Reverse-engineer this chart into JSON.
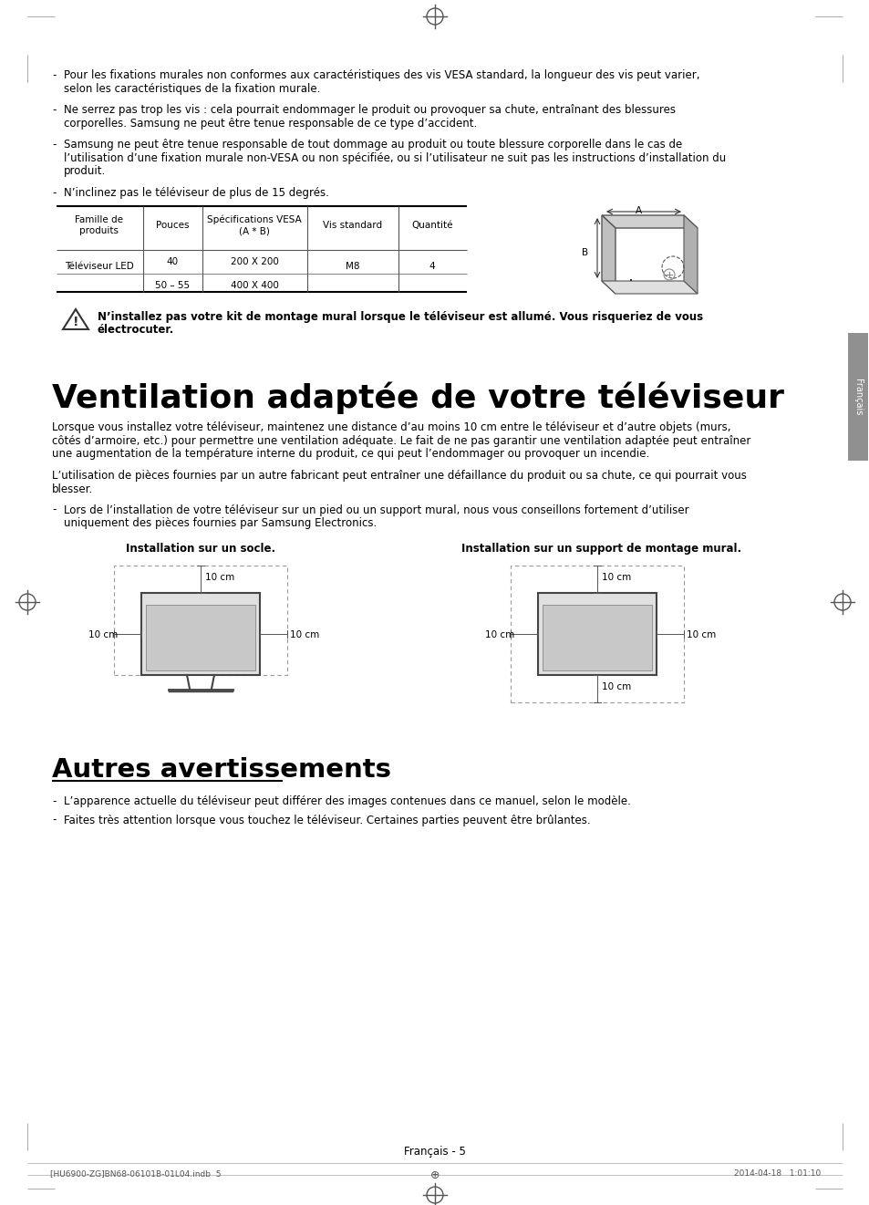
{
  "page_bg": "#ffffff",
  "text_color": "#000000",
  "title_ventilation": "Ventilation adaptée de votre téléviseur",
  "title_autres": "Autres avertissements",
  "bullet1_l1": "Pour les fixations murales non conformes aux caractéristiques des vis VESA standard, la longueur des vis peut varier,",
  "bullet1_l2": "selon les caractéristiques de la fixation murale.",
  "bullet2_l1": "Ne serrez pas trop les vis : cela pourrait endommager le produit ou provoquer sa chute, entraînant des blessures",
  "bullet2_l2": "corporelles. Samsung ne peut être tenue responsable de ce type d’accident.",
  "bullet3_l1": "Samsung ne peut être tenue responsable de tout dommage au produit ou toute blessure corporelle dans le cas de",
  "bullet3_l2": "l’utilisation d’une fixation murale non-VESA ou non spécifiée, ou si l’utilisateur ne suit pas les instructions d’installation du",
  "bullet3_l3": "produit.",
  "bullet4_l1": "N’inclinez pas le téléviseur de plus de 15 degrés.",
  "warn_l1": "N’installez pas votre kit de montage mural lorsque le téléviseur est allumé. Vous risqueriez de vous",
  "warn_l2": "électrocuter.",
  "vpara1_l1": "Lorsque vous installez votre téléviseur, maintenez une distance d’au moins 10 cm entre le téléviseur et d’autre objets (murs,",
  "vpara1_l2": "côtés d’armoire, etc.) pour permettre une ventilation adéquate. Le fait de ne pas garantir une ventilation adaptée peut entraîner",
  "vpara1_l3": "une augmentation de la température interne du produit, ce qui peut l’endommager ou provoquer un incendie.",
  "vpara2_l1": "L’utilisation de pièces fournies par un autre fabricant peut entraîner une défaillance du produit ou sa chute, ce qui pourrait vous",
  "vpara2_l2": "blesser.",
  "vbullet_l1": "Lors de l’installation de votre téléviseur sur un pied ou un support mural, nous vous conseillons fortement d’utiliser",
  "vbullet_l2": "uniquement des pièces fournies par Samsung Electronics.",
  "install_socle_label": "Installation sur un socle.",
  "install_mural_label": "Installation sur un support de montage mural.",
  "autres_bullet1": "L’apparence actuelle du téléviseur peut différer des images contenues dans ce manuel, selon le modèle.",
  "autres_bullet2": "Faites très attention lorsque vous touchez le téléviseur. Certaines parties peuvent être brûlantes.",
  "footer_text": "Français - 5",
  "footer_doc": "[HU6900-ZG]BN68-06101B-01L04.indb  5",
  "footer_date": "2014-04-18   1:01:10",
  "sidebar_text": "Français",
  "th0": "Famille de\nproduits",
  "th1": "Pouces",
  "th2": "Spécifications VESA\n(A * B)",
  "th3": "Vis standard",
  "th4": "Quantité",
  "td_led": "Téléviseur LED",
  "td_40": "40",
  "td_200": "200 X 200",
  "td_5055": "50 – 55",
  "td_400": "400 X 400",
  "td_m8": "M8",
  "td_4": "4"
}
